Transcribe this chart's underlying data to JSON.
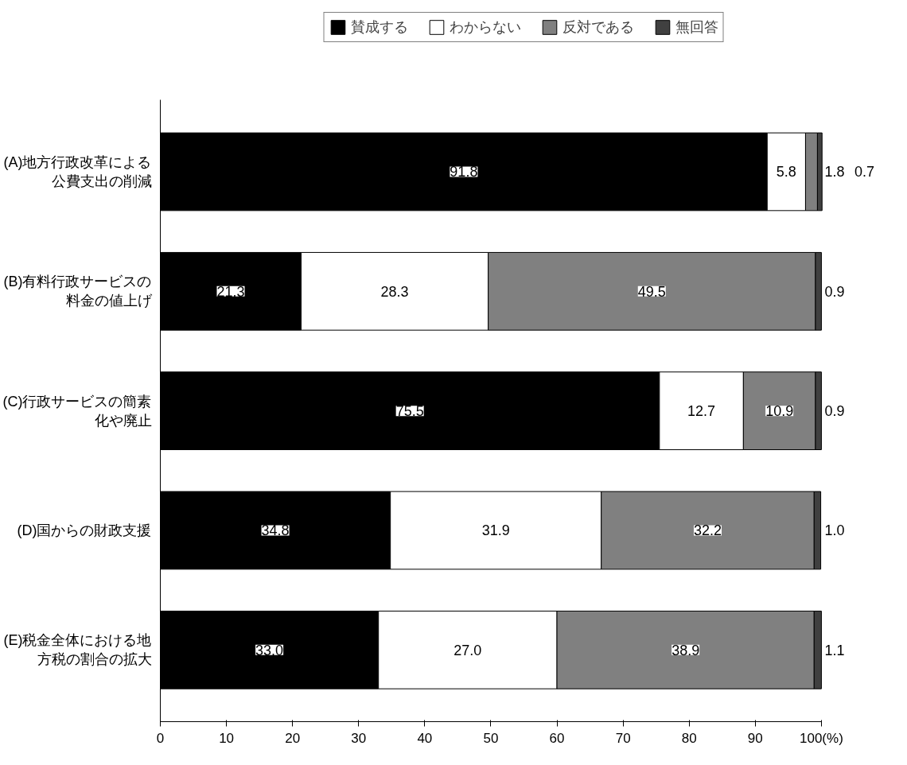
{
  "chart_data": {
    "type": "bar",
    "orientation": "horizontal",
    "stacked": true,
    "legend": "top",
    "grid": false,
    "categories": [
      "(A)地方行政改革による公費支出の削減",
      "(B)有料行政サービスの料金の値上げ",
      "(C)行政サービスの簡素化や廃止",
      "(D)国からの財政支援",
      "(E)税金全体における地方税の割合の拡大"
    ],
    "series": [
      {
        "name": "賛成する",
        "color": "#000000",
        "values": [
          91.8,
          21.3,
          75.5,
          34.8,
          33.0
        ],
        "value_labels": [
          "91.8",
          "21.3",
          "75.5",
          "34.8",
          "33.0"
        ]
      },
      {
        "name": "わからない",
        "color": "#ffffff",
        "values": [
          5.8,
          28.3,
          12.7,
          31.9,
          27.0
        ],
        "value_labels": [
          "5.8",
          "28.3",
          "12.7",
          "31.9",
          "27.0"
        ]
      },
      {
        "name": "反対である",
        "color": "#808080",
        "values": [
          1.8,
          49.5,
          10.9,
          32.2,
          38.9
        ],
        "value_labels": [
          "1.8",
          "49.5",
          "10.9",
          "32.2",
          "38.9"
        ]
      },
      {
        "name": "無回答",
        "color": "#404040",
        "values": [
          0.7,
          0.9,
          0.9,
          1.0,
          1.1
        ],
        "value_labels": [
          "0.7",
          "0.9",
          "0.9",
          "1.0",
          "1.1"
        ]
      }
    ],
    "xlim": [
      0,
      100
    ],
    "xticks": [
      0,
      10,
      20,
      30,
      40,
      50,
      60,
      70,
      80,
      90,
      {
        "value": 100,
        "label": "100(%)"
      }
    ]
  }
}
